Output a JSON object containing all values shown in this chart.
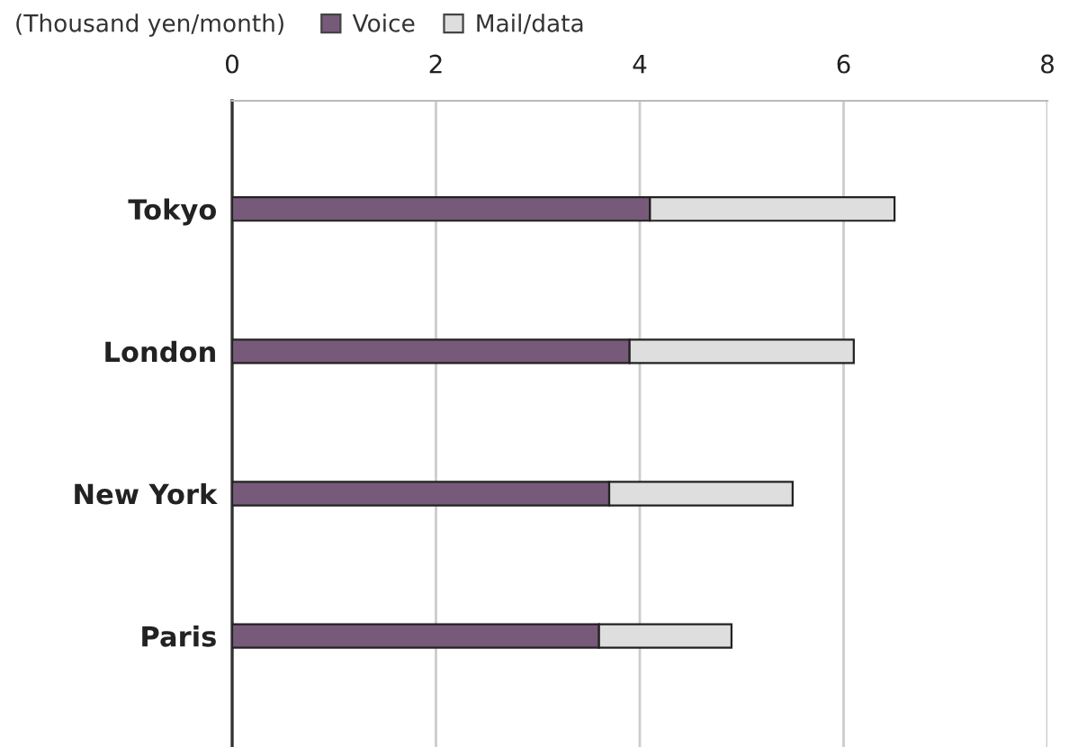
{
  "chart_data": {
    "type": "bar",
    "orientation": "horizontal",
    "stacked": true,
    "xlabel": "(Thousand yen/month)",
    "categories": [
      "Tokyo",
      "London",
      "New York",
      "Paris"
    ],
    "series": [
      {
        "name": "Voice",
        "color": "#775a7a",
        "values": [
          4.1,
          3.9,
          3.7,
          3.6
        ]
      },
      {
        "name": "Mail/data",
        "color": "#dedede",
        "values": [
          2.4,
          2.2,
          1.8,
          1.3
        ]
      }
    ],
    "xlim": [
      0,
      8
    ],
    "xticks": [
      0,
      2,
      4,
      6,
      8
    ],
    "grid": "x",
    "legend": "top left"
  }
}
